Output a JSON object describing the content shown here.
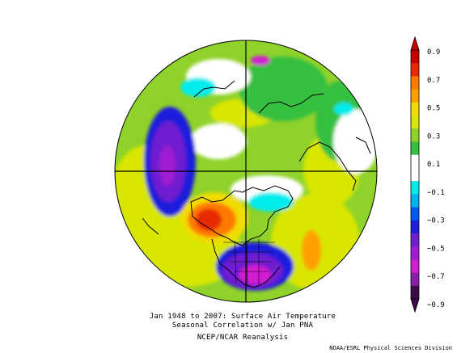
{
  "figure": {
    "title_line1": "Jan 1948 to 2007: Surface Air Temperature",
    "title_line2": "Seasonal Correlation w/ Jan PNA",
    "source": "NCEP/NCAR Reanalysis",
    "credit": "NOAA/ESRL Physical Sciences Division"
  },
  "colorbar": {
    "labels": [
      "0.9",
      "0.7",
      "0.5",
      "0.3",
      "0.1",
      "−0.1",
      "−0.3",
      "−0.5",
      "−0.7",
      "−0.9"
    ],
    "colors_top_to_bottom": [
      "#c80000",
      "#e82a00",
      "#ff7a00",
      "#ffa000",
      "#f0dc00",
      "#d8e600",
      "#8fd22a",
      "#36c040",
      "#ffffff",
      "#ffffff",
      "#00ecec",
      "#00b4f0",
      "#005af0",
      "#1e1edc",
      "#6f1ed0",
      "#a01cd2",
      "#d31fd3",
      "#8a1ea8",
      "#3c0a46"
    ]
  },
  "map": {
    "projection": "north polar stereographic",
    "colors": {
      "ocean_base": "#8fd22a",
      "neutral": "#ffffff",
      "warm_strong": "#e82a00",
      "warm": "#ff7a00",
      "yellow": "#f0dc00",
      "green": "#36c040",
      "cyan": "#00ecec",
      "blue": "#005af0",
      "purple": "#6f1ed0",
      "magenta": "#d31fd3"
    }
  }
}
